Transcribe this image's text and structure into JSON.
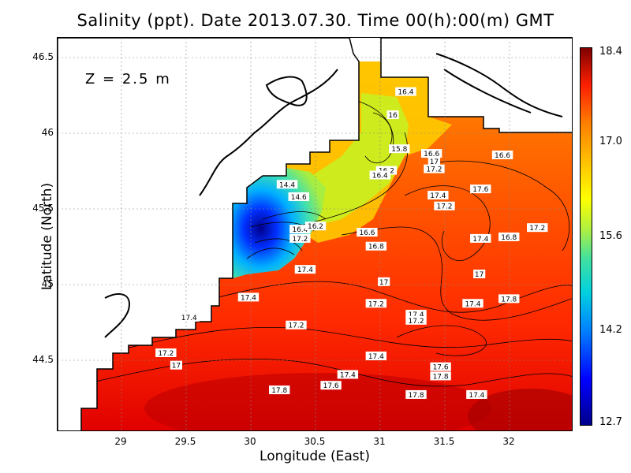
{
  "title": "Salinity (ppt). Date 2013.07.30. Time 00(h):00(m) GMT",
  "depth_label": "Z = 2.5 m",
  "xlabel": "Longitude (East)",
  "ylabel": "Latitude (North)",
  "xticks": [
    "29",
    "29.5",
    "30",
    "30.5",
    "31",
    "31.5",
    "32"
  ],
  "yticks": [
    "46.5",
    "46",
    "45.5",
    "45",
    "44.5"
  ],
  "colorbar": {
    "ticks": [
      "18.4",
      "17.0",
      "15.6",
      "14.2",
      "12.7"
    ],
    "min": 12.7,
    "max": 18.4
  },
  "map_extent": {
    "lon": [
      28.5,
      32.5
    ],
    "lat": [
      44.05,
      46.6
    ]
  },
  "contour_labels": [
    {
      "text": "16.4",
      "lon": 31.2,
      "lat": 46.25
    },
    {
      "text": "16",
      "lon": 31.1,
      "lat": 46.1
    },
    {
      "text": "15.8",
      "lon": 31.15,
      "lat": 45.88
    },
    {
      "text": "16.6",
      "lon": 31.4,
      "lat": 45.85
    },
    {
      "text": "17",
      "lon": 31.42,
      "lat": 45.8
    },
    {
      "text": "17.2",
      "lon": 31.42,
      "lat": 45.75
    },
    {
      "text": "16.6",
      "lon": 31.95,
      "lat": 45.84
    },
    {
      "text": "16.2",
      "lon": 31.05,
      "lat": 45.74
    },
    {
      "text": "16.4",
      "lon": 31.0,
      "lat": 45.71
    },
    {
      "text": "14.4",
      "lon": 30.28,
      "lat": 45.65
    },
    {
      "text": "14.6",
      "lon": 30.37,
      "lat": 45.57
    },
    {
      "text": "17.4",
      "lon": 31.45,
      "lat": 45.58
    },
    {
      "text": "17.6",
      "lon": 31.78,
      "lat": 45.62
    },
    {
      "text": "17.2",
      "lon": 31.5,
      "lat": 45.51
    },
    {
      "text": "16.4",
      "lon": 30.38,
      "lat": 45.36
    },
    {
      "text": "16.2",
      "lon": 30.5,
      "lat": 45.38
    },
    {
      "text": "17.2",
      "lon": 30.38,
      "lat": 45.3
    },
    {
      "text": "16.6",
      "lon": 30.9,
      "lat": 45.34
    },
    {
      "text": "16.8",
      "lon": 30.97,
      "lat": 45.25
    },
    {
      "text": "17.4",
      "lon": 31.78,
      "lat": 45.3
    },
    {
      "text": "16.8",
      "lon": 32.0,
      "lat": 45.31
    },
    {
      "text": "17.2",
      "lon": 32.22,
      "lat": 45.37
    },
    {
      "text": "17.4",
      "lon": 30.42,
      "lat": 45.1
    },
    {
      "text": "17",
      "lon": 31.03,
      "lat": 45.02
    },
    {
      "text": "17",
      "lon": 31.77,
      "lat": 45.07
    },
    {
      "text": "17.4",
      "lon": 29.98,
      "lat": 44.92
    },
    {
      "text": "17.2",
      "lon": 30.97,
      "lat": 44.88
    },
    {
      "text": "17.4",
      "lon": 31.72,
      "lat": 44.88
    },
    {
      "text": "17.8",
      "lon": 32.0,
      "lat": 44.91
    },
    {
      "text": "17.4",
      "lon": 29.52,
      "lat": 44.79
    },
    {
      "text": "17.4",
      "lon": 31.28,
      "lat": 44.81
    },
    {
      "text": "17.2",
      "lon": 31.28,
      "lat": 44.77
    },
    {
      "text": "17.2",
      "lon": 30.35,
      "lat": 44.74
    },
    {
      "text": "17.2",
      "lon": 29.34,
      "lat": 44.56
    },
    {
      "text": "17.4",
      "lon": 30.97,
      "lat": 44.54
    },
    {
      "text": "17",
      "lon": 29.42,
      "lat": 44.48
    },
    {
      "text": "17.6",
      "lon": 31.47,
      "lat": 44.47
    },
    {
      "text": "17.4",
      "lon": 30.75,
      "lat": 44.42
    },
    {
      "text": "17.8",
      "lon": 31.47,
      "lat": 44.41
    },
    {
      "text": "17.6",
      "lon": 30.62,
      "lat": 44.35
    },
    {
      "text": "17.8",
      "lon": 30.22,
      "lat": 44.32
    },
    {
      "text": "17.8",
      "lon": 31.28,
      "lat": 44.29
    },
    {
      "text": "17.4",
      "lon": 31.75,
      "lat": 44.29
    }
  ]
}
